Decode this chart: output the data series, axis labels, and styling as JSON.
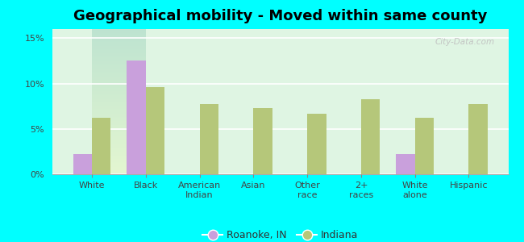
{
  "title": "Geographical mobility - Moved within same county",
  "categories": [
    "White",
    "Black",
    "American\nIndian",
    "Asian",
    "Other\nrace",
    "2+\nraces",
    "White\nalone",
    "Hispanic"
  ],
  "roanoke_values": [
    2.2,
    12.5,
    0,
    0,
    0,
    0,
    2.2,
    0
  ],
  "indiana_values": [
    6.2,
    9.6,
    7.7,
    7.3,
    6.7,
    8.3,
    6.2,
    7.7
  ],
  "roanoke_color": "#c9a0dc",
  "indiana_color": "#b5c77a",
  "outer_bg": "#00ffff",
  "plot_bg": "#e8f5e8",
  "ylim": [
    0,
    0.16
  ],
  "yticks": [
    0,
    0.05,
    0.1,
    0.15
  ],
  "ytick_labels": [
    "0%",
    "5%",
    "10%",
    "15%"
  ],
  "legend_roanoke": "Roanoke, IN",
  "legend_indiana": "Indiana",
  "bar_width": 0.35,
  "title_fontsize": 13,
  "tick_fontsize": 8,
  "legend_fontsize": 9
}
